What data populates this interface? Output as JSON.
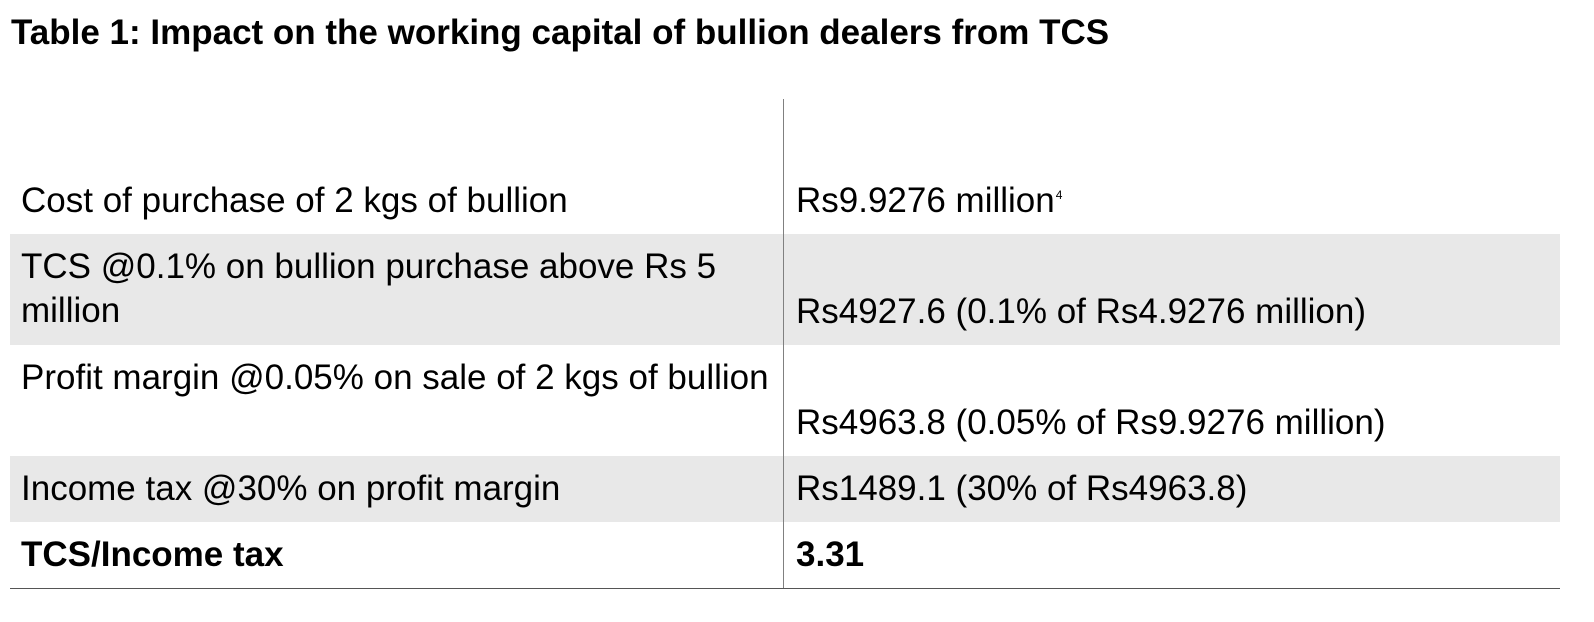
{
  "title": "Table 1: Impact on the working capital of bullion dealers from TCS",
  "rows": [
    {
      "label": "Cost of purchase of 2 kgs of bullion",
      "value": "Rs9.9276 million",
      "footnote": "4"
    },
    {
      "label": "TCS @0.1% on bullion purchase above Rs 5 million",
      "value": "Rs4927.6 (0.1% of Rs4.9276 million)"
    },
    {
      "label": "Profit margin @0.05% on sale of 2 kgs of bullion",
      "value": "Rs4963.8 (0.05% of Rs9.9276 million)"
    },
    {
      "label": "Income tax @30% on profit margin",
      "value": "Rs1489.1 (30% of Rs4963.8)"
    },
    {
      "label": "TCS/Income tax",
      "value": "3.31"
    }
  ],
  "colors": {
    "shaded_row": "#e8e8e8",
    "divider": "#808080"
  }
}
